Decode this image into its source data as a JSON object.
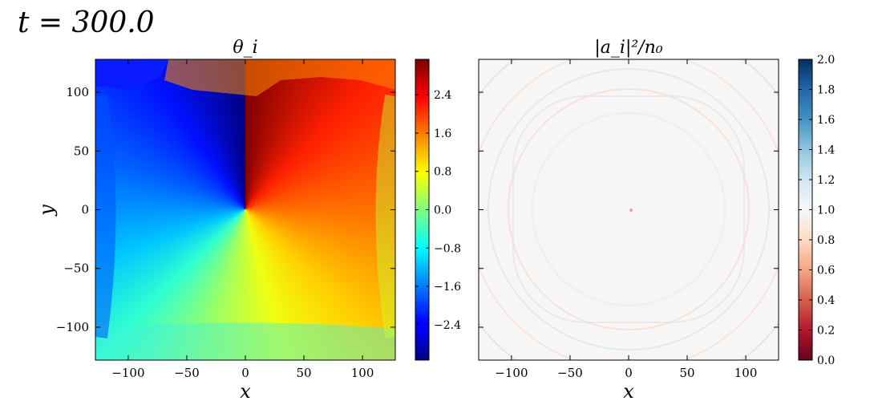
{
  "figure": {
    "suptitle": "t = 300.0"
  },
  "chart_data": [
    {
      "type": "heatmap",
      "title": "θ_i",
      "xlabel": "x",
      "ylabel": "y",
      "xlim": [
        -128,
        128
      ],
      "ylim": [
        -128,
        128
      ],
      "xticks": [
        -100,
        -50,
        0,
        50,
        100
      ],
      "yticks": [
        -100,
        -50,
        0,
        50,
        100
      ],
      "xtick_labels": [
        "−100",
        "−50",
        "0",
        "50",
        "100"
      ],
      "ytick_labels": [
        "−100",
        "−50",
        "0",
        "50",
        "100"
      ],
      "colormap": "jet",
      "colorbar": {
        "vmin": -3.14,
        "vmax": 3.14,
        "ticks": [
          -2.4,
          -1.6,
          -0.8,
          0.0,
          0.8,
          1.6,
          2.4
        ],
        "tick_labels": [
          "−2.4",
          "−1.6",
          "−0.8",
          "0.0",
          "0.8",
          "1.6",
          "2.4"
        ]
      },
      "field": "phase of a vortex centred at the origin, branch cut along positive y-axis",
      "vortex_center": [
        0,
        0
      ]
    },
    {
      "type": "heatmap",
      "title": "|a_i|²/n₀",
      "xlabel": "x",
      "ylabel": "",
      "xlim": [
        -128,
        128
      ],
      "ylim": [
        -128,
        128
      ],
      "xticks": [
        -100,
        -50,
        0,
        50,
        100
      ],
      "yticks": [
        -100,
        -50,
        0,
        50,
        100
      ],
      "xtick_labels": [
        "−100",
        "−50",
        "0",
        "50",
        "100"
      ],
      "colormap": "RdBu",
      "colorbar": {
        "vmin": 0.0,
        "vmax": 2.0,
        "ticks": [
          0.0,
          0.2,
          0.4,
          0.6,
          0.8,
          1.0,
          1.2,
          1.4,
          1.6,
          1.8,
          2.0
        ],
        "tick_labels": [
          "0.0",
          "0.2",
          "0.4",
          "0.6",
          "0.8",
          "1.0",
          "1.2",
          "1.4",
          "1.6",
          "1.8",
          "2.0"
        ]
      },
      "field": "density ≈ 1.0 everywhere with faint ripples",
      "vortex_center": [
        0,
        0
      ]
    }
  ]
}
